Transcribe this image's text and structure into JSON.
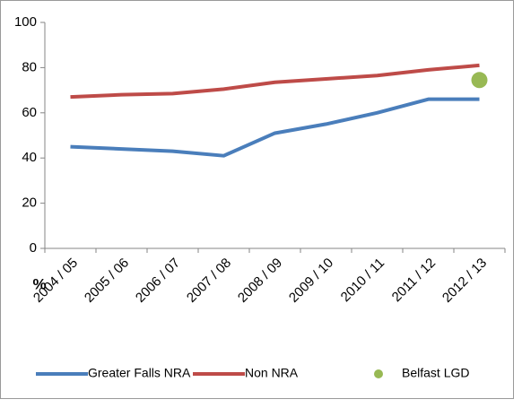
{
  "chart_data": {
    "type": "line",
    "categories": [
      "2004 / 05",
      "2005 / 06",
      "2006 / 07",
      "2007 / 08",
      "2008 / 09",
      "2009 / 10",
      "2010 / 11",
      "2011 / 12",
      "2012 / 13"
    ],
    "series": [
      {
        "name": "Greater Falls NRA",
        "color": "#4a7ebb",
        "style": "line",
        "values": [
          45,
          44,
          43,
          41,
          51,
          55,
          60,
          66,
          66
        ]
      },
      {
        "name": "Non NRA",
        "color": "#be4b48",
        "style": "line",
        "values": [
          67,
          68,
          68.5,
          70.5,
          73.5,
          75,
          76.5,
          79,
          81
        ]
      },
      {
        "name": "Belfast LGD",
        "color": "#98b954",
        "style": "marker",
        "values": [
          null,
          null,
          null,
          null,
          null,
          null,
          null,
          null,
          74.5
        ]
      }
    ],
    "y_label": "%",
    "ylim": [
      0,
      100
    ],
    "yticks": [
      0,
      20,
      40,
      60,
      80,
      100
    ],
    "grid": false,
    "legend": "bottom"
  }
}
